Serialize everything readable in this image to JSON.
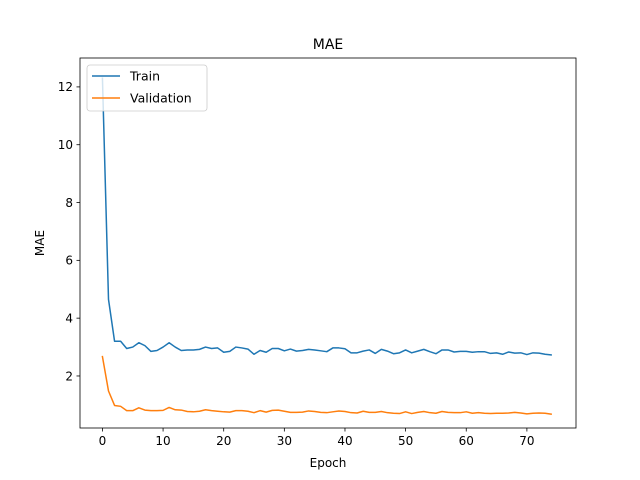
{
  "chart_data": {
    "type": "line",
    "title": "MAE",
    "xlabel": "Epoch",
    "ylabel": "MAE",
    "xlim": [
      -3.7,
      78.1
    ],
    "ylim": [
      0.2,
      13.0
    ],
    "xticks": [
      0,
      10,
      20,
      30,
      40,
      50,
      60,
      70
    ],
    "yticks": [
      2,
      4,
      6,
      8,
      10,
      12
    ],
    "grid": false,
    "legend_position": "top-left",
    "series": [
      {
        "name": "Train",
        "color": "#1f77b4",
        "values": [
          12.3,
          4.65,
          3.2,
          3.2,
          2.95,
          3.0,
          3.15,
          3.05,
          2.85,
          2.88,
          3.0,
          3.15,
          3.0,
          2.88,
          2.9,
          2.9,
          2.92,
          3.0,
          2.95,
          2.97,
          2.82,
          2.85,
          3.0,
          2.97,
          2.93,
          2.75,
          2.88,
          2.82,
          2.95,
          2.95,
          2.87,
          2.93,
          2.86,
          2.88,
          2.92,
          2.9,
          2.87,
          2.84,
          2.97,
          2.97,
          2.94,
          2.8,
          2.8,
          2.86,
          2.9,
          2.78,
          2.92,
          2.86,
          2.77,
          2.8,
          2.9,
          2.8,
          2.86,
          2.92,
          2.84,
          2.77,
          2.9,
          2.9,
          2.83,
          2.85,
          2.85,
          2.82,
          2.84,
          2.84,
          2.78,
          2.8,
          2.75,
          2.83,
          2.79,
          2.8,
          2.74,
          2.8,
          2.79,
          2.75,
          2.73
        ]
      },
      {
        "name": "Validation",
        "color": "#ff7f0e",
        "values": [
          2.67,
          1.48,
          0.98,
          0.95,
          0.8,
          0.8,
          0.9,
          0.82,
          0.8,
          0.8,
          0.81,
          0.91,
          0.83,
          0.82,
          0.77,
          0.76,
          0.78,
          0.83,
          0.8,
          0.78,
          0.76,
          0.75,
          0.8,
          0.8,
          0.78,
          0.73,
          0.8,
          0.75,
          0.81,
          0.82,
          0.78,
          0.74,
          0.74,
          0.75,
          0.79,
          0.77,
          0.74,
          0.73,
          0.76,
          0.79,
          0.77,
          0.73,
          0.72,
          0.78,
          0.74,
          0.74,
          0.77,
          0.73,
          0.71,
          0.7,
          0.76,
          0.7,
          0.74,
          0.77,
          0.73,
          0.71,
          0.77,
          0.74,
          0.73,
          0.73,
          0.76,
          0.71,
          0.73,
          0.71,
          0.7,
          0.71,
          0.71,
          0.72,
          0.74,
          0.72,
          0.69,
          0.71,
          0.72,
          0.71,
          0.68
        ]
      }
    ]
  }
}
